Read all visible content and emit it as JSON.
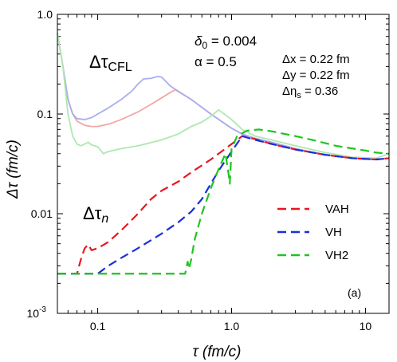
{
  "chart_data": {
    "type": "line",
    "xlabel": "τ (fm/c)",
    "ylabel": "Δτ (fm/c)",
    "x_scale": "log",
    "y_scale": "log",
    "xlim": [
      0.05,
      15
    ],
    "ylim": [
      0.001,
      1
    ],
    "x_ticks": [
      {
        "value": 0.1,
        "label": "0.1"
      },
      {
        "value": 1,
        "label": "1.0"
      },
      {
        "value": 10,
        "label": "10"
      }
    ],
    "y_ticks": [
      {
        "value": 1,
        "label": "1.0"
      },
      {
        "value": 0.1,
        "label": "0.1"
      },
      {
        "value": 0.01,
        "label": "0.01"
      },
      {
        "value": 0.001,
        "label": "10",
        "sup": "-3"
      }
    ],
    "annotations": {
      "dt_cfl": "Δτ",
      "dt_cfl_sub": "CFL",
      "dt_n": "Δτ",
      "dt_n_sub": "n",
      "delta0": "δ",
      "delta0_sub": "0",
      "delta0_value": " = 0.004",
      "alpha": "α = 0.5",
      "dx": "Δx = 0.22 fm",
      "dy": "Δy = 0.22 fm",
      "deta": "Δη",
      "deta_sub": "s",
      "deta_value": " = 0.36",
      "panel": "(a)"
    },
    "legend": {
      "placement": "right",
      "entries": [
        {
          "name": "VAH",
          "color": "#e8161e"
        },
        {
          "name": "VH",
          "color": "#1a2fd6"
        },
        {
          "name": "VH2",
          "color": "#1fc41f"
        }
      ]
    },
    "series": [
      {
        "name": "VAH",
        "group": "cfl",
        "color": "#f4a6a6",
        "style": "solid",
        "points": [
          [
            0.05,
            0.65
          ],
          [
            0.055,
            0.3
          ],
          [
            0.06,
            0.14
          ],
          [
            0.065,
            0.1
          ],
          [
            0.07,
            0.085
          ],
          [
            0.08,
            0.077
          ],
          [
            0.09,
            0.075
          ],
          [
            0.1,
            0.075
          ],
          [
            0.12,
            0.079
          ],
          [
            0.15,
            0.088
          ],
          [
            0.2,
            0.105
          ],
          [
            0.25,
            0.125
          ],
          [
            0.3,
            0.145
          ],
          [
            0.35,
            0.165
          ],
          [
            0.38,
            0.175
          ],
          [
            0.5,
            0.14
          ],
          [
            0.7,
            0.1
          ],
          [
            1.0,
            0.072
          ],
          [
            1.2,
            0.063
          ],
          [
            1.5,
            0.057
          ],
          [
            2,
            0.052
          ],
          [
            3,
            0.045
          ],
          [
            5,
            0.039
          ],
          [
            8,
            0.036
          ],
          [
            12,
            0.035
          ],
          [
            15,
            0.036
          ]
        ]
      },
      {
        "name": "VH",
        "group": "cfl",
        "color": "#a8aeee",
        "style": "solid",
        "points": [
          [
            0.05,
            0.65
          ],
          [
            0.055,
            0.3
          ],
          [
            0.06,
            0.14
          ],
          [
            0.065,
            0.1
          ],
          [
            0.07,
            0.09
          ],
          [
            0.08,
            0.088
          ],
          [
            0.09,
            0.092
          ],
          [
            0.1,
            0.1
          ],
          [
            0.12,
            0.115
          ],
          [
            0.15,
            0.14
          ],
          [
            0.18,
            0.17
          ],
          [
            0.2,
            0.2
          ],
          [
            0.22,
            0.225
          ],
          [
            0.25,
            0.228
          ],
          [
            0.28,
            0.238
          ],
          [
            0.3,
            0.235
          ],
          [
            0.35,
            0.19
          ],
          [
            0.5,
            0.14
          ],
          [
            0.7,
            0.1
          ],
          [
            1.0,
            0.072
          ],
          [
            1.2,
            0.063
          ],
          [
            1.5,
            0.057
          ],
          [
            2,
            0.052
          ],
          [
            3,
            0.045
          ],
          [
            5,
            0.039
          ],
          [
            8,
            0.036
          ],
          [
            12,
            0.035
          ],
          [
            15,
            0.036
          ]
        ]
      },
      {
        "name": "VH2",
        "group": "cfl",
        "color": "#aee8ae",
        "style": "solid",
        "points": [
          [
            0.05,
            0.65
          ],
          [
            0.055,
            0.3
          ],
          [
            0.06,
            0.1
          ],
          [
            0.065,
            0.06
          ],
          [
            0.07,
            0.05
          ],
          [
            0.075,
            0.048
          ],
          [
            0.08,
            0.05
          ],
          [
            0.085,
            0.052
          ],
          [
            0.09,
            0.049
          ],
          [
            0.1,
            0.047
          ],
          [
            0.11,
            0.04
          ],
          [
            0.12,
            0.042
          ],
          [
            0.15,
            0.045
          ],
          [
            0.2,
            0.048
          ],
          [
            0.3,
            0.055
          ],
          [
            0.4,
            0.063
          ],
          [
            0.5,
            0.075
          ],
          [
            0.6,
            0.083
          ],
          [
            0.7,
            0.095
          ],
          [
            0.8,
            0.11
          ],
          [
            1.0,
            0.088
          ],
          [
            1.2,
            0.07
          ],
          [
            1.5,
            0.06
          ],
          [
            2,
            0.055
          ],
          [
            3,
            0.048
          ],
          [
            5,
            0.041
          ],
          [
            8,
            0.037
          ],
          [
            12,
            0.036
          ],
          [
            15,
            0.04
          ]
        ]
      },
      {
        "name": "VAH",
        "group": "n",
        "color": "#e8161e",
        "style": "dashed",
        "points": [
          [
            0.05,
            0.0025
          ],
          [
            0.07,
            0.0025
          ],
          [
            0.075,
            0.0035
          ],
          [
            0.08,
            0.0045
          ],
          [
            0.085,
            0.0049
          ],
          [
            0.09,
            0.0043
          ],
          [
            0.1,
            0.0045
          ],
          [
            0.12,
            0.0052
          ],
          [
            0.15,
            0.0068
          ],
          [
            0.2,
            0.01
          ],
          [
            0.25,
            0.014
          ],
          [
            0.3,
            0.017
          ],
          [
            0.4,
            0.021
          ],
          [
            0.5,
            0.026
          ],
          [
            0.7,
            0.035
          ],
          [
            1.0,
            0.05
          ],
          [
            1.2,
            0.06
          ],
          [
            1.5,
            0.056
          ],
          [
            2,
            0.05
          ],
          [
            3,
            0.044
          ],
          [
            5,
            0.039
          ],
          [
            8,
            0.036
          ],
          [
            12,
            0.035
          ],
          [
            15,
            0.036
          ]
        ]
      },
      {
        "name": "VH",
        "group": "n",
        "color": "#1a2fd6",
        "style": "dashed",
        "points": [
          [
            0.05,
            0.0025
          ],
          [
            0.1,
            0.0025
          ],
          [
            0.12,
            0.003
          ],
          [
            0.15,
            0.0036
          ],
          [
            0.2,
            0.0045
          ],
          [
            0.3,
            0.0063
          ],
          [
            0.4,
            0.0082
          ],
          [
            0.5,
            0.0105
          ],
          [
            0.6,
            0.014
          ],
          [
            0.7,
            0.02
          ],
          [
            0.8,
            0.027
          ],
          [
            1.0,
            0.042
          ],
          [
            1.2,
            0.06
          ],
          [
            1.5,
            0.055
          ],
          [
            2,
            0.05
          ],
          [
            3,
            0.044
          ],
          [
            5,
            0.039
          ],
          [
            8,
            0.036
          ],
          [
            12,
            0.035
          ],
          [
            15,
            0.036
          ]
        ]
      },
      {
        "name": "VH2",
        "group": "n",
        "color": "#1fc41f",
        "style": "dashed",
        "points": [
          [
            0.05,
            0.0025
          ],
          [
            0.45,
            0.0025
          ],
          [
            0.47,
            0.0033
          ],
          [
            0.48,
            0.0028
          ],
          [
            0.5,
            0.0035
          ],
          [
            0.53,
            0.0055
          ],
          [
            0.6,
            0.01
          ],
          [
            0.7,
            0.018
          ],
          [
            0.8,
            0.028
          ],
          [
            0.9,
            0.04
          ],
          [
            0.95,
            0.025
          ],
          [
            0.97,
            0.02
          ],
          [
            1.0,
            0.045
          ],
          [
            1.1,
            0.06
          ],
          [
            1.3,
            0.068
          ],
          [
            1.6,
            0.07
          ],
          [
            2,
            0.067
          ],
          [
            3,
            0.06
          ],
          [
            4,
            0.055
          ],
          [
            6,
            0.048
          ],
          [
            10,
            0.043
          ],
          [
            12,
            0.041
          ],
          [
            15,
            0.04
          ]
        ]
      }
    ]
  }
}
